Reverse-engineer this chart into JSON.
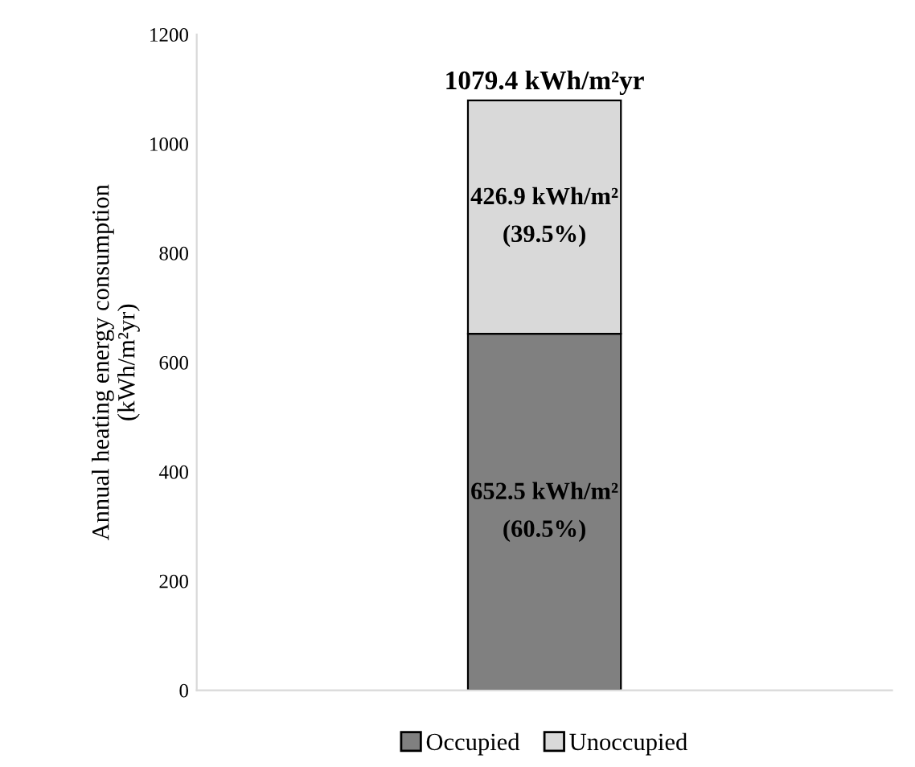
{
  "chart_data": {
    "type": "bar",
    "stacked": true,
    "categories": [
      null
    ],
    "series": [
      {
        "name": "Occupied",
        "color": "#808080",
        "values": [
          652.5
        ],
        "value_labels": [
          "652.5 kWh/m²\n(60.5%)"
        ]
      },
      {
        "name": "Unoccupied",
        "color": "#d9d9d9",
        "values": [
          426.9
        ],
        "value_labels": [
          "426.9 kWh/m²\n(39.5%)"
        ]
      }
    ],
    "totals": [
      "1079.4 kWh/m²yr"
    ],
    "ylabel": "Annual heating energy consumption\n(kWh/m²yr)",
    "ylim": [
      0,
      1200
    ],
    "yticks": [
      0,
      200,
      400,
      600,
      800,
      1000,
      1200
    ],
    "grid": false,
    "legend": "bottom"
  }
}
